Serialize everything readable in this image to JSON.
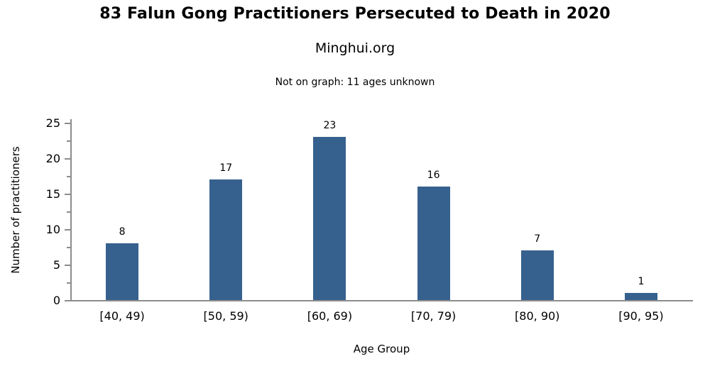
{
  "chart_data": {
    "type": "bar",
    "title": "83 Falun Gong Practitioners Persecuted to Death in 2020",
    "subtitle": "Minghui.org",
    "note": "Not on graph: 11 ages unknown",
    "categories": [
      "[40, 49)",
      "[50, 59)",
      "[60, 69)",
      "[70, 79)",
      "[80, 90)",
      "[90, 95)"
    ],
    "values": [
      8,
      17,
      23,
      16,
      7,
      1
    ],
    "xlabel": "Age Group",
    "ylabel": "Number of practitioners",
    "ylim": [
      0,
      25
    ],
    "yticks": [
      0,
      5,
      10,
      15,
      20,
      25
    ],
    "minor_ticks": [
      2.5,
      7.5,
      12.5,
      17.5,
      22.5
    ],
    "grid": false,
    "legend_position": "none",
    "bar_color": "#36618E",
    "axis_color": "#8C8C8C",
    "text_color": "#000000"
  }
}
